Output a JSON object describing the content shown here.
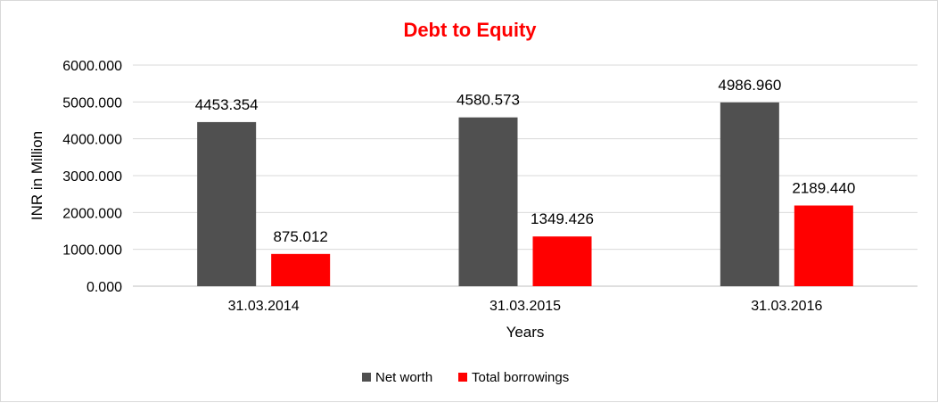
{
  "chart_data": {
    "type": "bar",
    "title": "Debt to Equity",
    "xlabel": "Years",
    "ylabel": "INR in Million",
    "categories": [
      "31.03.2014",
      "31.03.2015",
      "31.03.2016"
    ],
    "series": [
      {
        "name": "Net worth",
        "color": "#505050",
        "values": [
          4453.354,
          4580.573,
          4986.96
        ],
        "labels": [
          "4453.354",
          "4580.573",
          "4986.960"
        ]
      },
      {
        "name": "Total borrowings",
        "color": "#ff0000",
        "values": [
          875.012,
          1349.426,
          2189.44
        ],
        "labels": [
          "875.012",
          "1349.426",
          "2189.440"
        ]
      }
    ],
    "ylim": [
      0,
      6000
    ],
    "yticks": [
      "0.000",
      "1000.000",
      "2000.000",
      "3000.000",
      "4000.000",
      "5000.000",
      "6000.000"
    ],
    "grid": true,
    "legend_position": "bottom",
    "title_color": "#ff0000"
  }
}
